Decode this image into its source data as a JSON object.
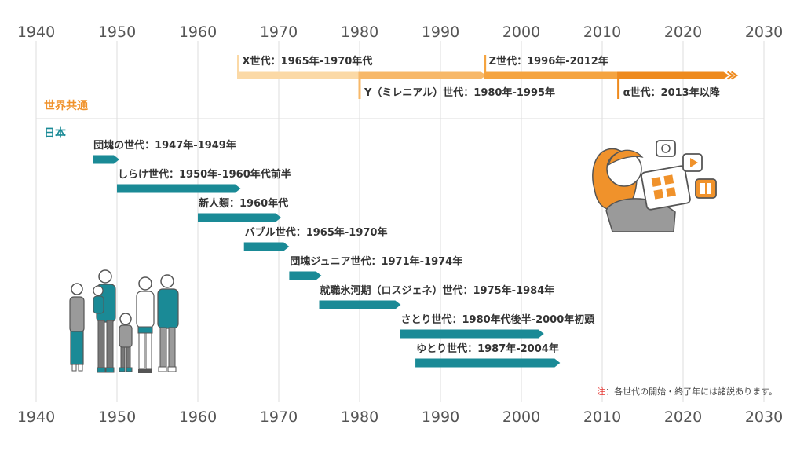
{
  "chart_data": {
    "type": "timeline",
    "x_axis": {
      "min": 1940,
      "max": 2030,
      "ticks": [
        1940,
        1950,
        1960,
        1970,
        1980,
        1990,
        2000,
        2010,
        2020,
        2030
      ]
    },
    "grid": true,
    "sections": [
      {
        "label": "世界共通",
        "color": "#f0922b",
        "items": [
          {
            "label": "X世代：1965年-1970年代",
            "start": 1965,
            "end": 1980,
            "color": "#fbd9a6",
            "label_pos": "above"
          },
          {
            "label": "Y（ミレニアル）世代：1980年-1995年",
            "start": 1980,
            "end": 1995,
            "color": "#f7b869",
            "label_pos": "below"
          },
          {
            "label": "Z世代：1996年-2012年",
            "start": 1995.5,
            "end": 2012,
            "color": "#f5a440",
            "label_pos": "above"
          },
          {
            "label": "α世代：2013年以降",
            "start": 2012,
            "end": 2025,
            "color": "#ee8a1e",
            "label_pos": "below",
            "open_ended": true
          }
        ]
      },
      {
        "label": "日本",
        "color": "#1a8a96",
        "items": [
          {
            "label": "団塊の世代：1947年-1949年",
            "start": 1947,
            "end": 1950
          },
          {
            "label": "しらけ世代：1950年-1960年代前半",
            "start": 1950,
            "end": 1965
          },
          {
            "label": "新人類：1960年代",
            "start": 1960,
            "end": 1970
          },
          {
            "label": "バブル世代：1965年-1970年",
            "start": 1965.7,
            "end": 1971
          },
          {
            "label": "団塊ジュニア世代：1971年-1974年",
            "start": 1971.3,
            "end": 1975
          },
          {
            "label": "就職氷河期（ロスジェネ）世代：1975年-1984年",
            "start": 1975,
            "end": 1984.8
          },
          {
            "label": "さとり世代：1980年代後半-2000年初頭",
            "start": 1985,
            "end": 2002.5
          },
          {
            "label": "ゆとり世代：1987年-2004年",
            "start": 1986.9,
            "end": 2004.5
          }
        ]
      }
    ]
  },
  "note": {
    "mark": "注",
    "text": "：各世代の開始・終了年には諸説あります。"
  },
  "icons": [
    "family-illustration",
    "girl-with-tablet-illustration",
    "chat-bubble-icon",
    "play-icon",
    "book-icon"
  ]
}
